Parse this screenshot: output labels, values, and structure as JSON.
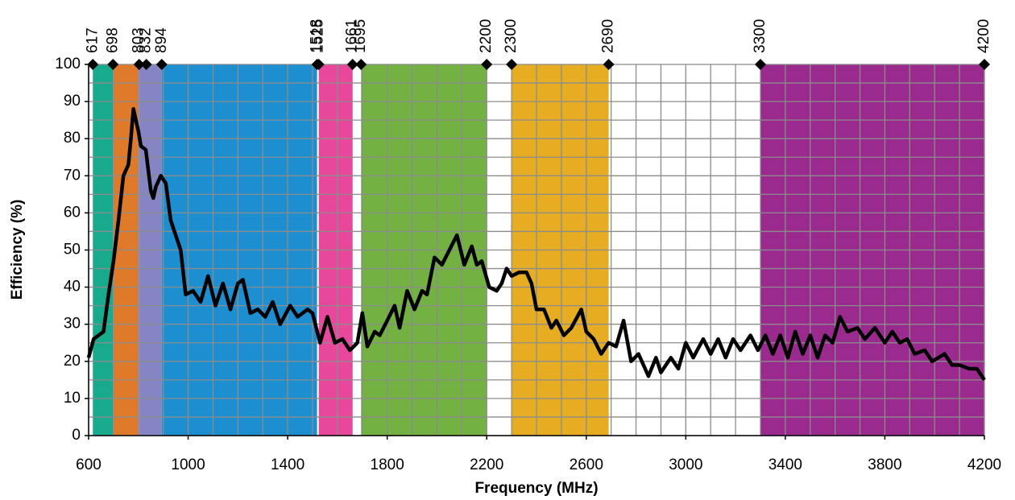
{
  "chart_data": {
    "type": "line",
    "xlabel": "Frequency (MHz)",
    "ylabel": "Efficiency (%)",
    "xlim": [
      600,
      4200
    ],
    "ylim": [
      0,
      100
    ],
    "xticks": [
      600,
      1000,
      1400,
      1800,
      2200,
      2600,
      3000,
      3400,
      3800,
      4200
    ],
    "yticks": [
      0,
      10,
      20,
      30,
      40,
      50,
      60,
      70,
      80,
      90,
      100
    ],
    "xgrid": [
      600,
      700,
      800,
      900,
      1000,
      1100,
      1200,
      1300,
      1400,
      1500,
      1600,
      1700,
      1800,
      1900,
      2000,
      2100,
      2200,
      2300,
      2400,
      2500,
      2600,
      2700,
      2800,
      2900,
      3000,
      3100,
      3200,
      3300,
      3400,
      3500,
      3600,
      3700,
      3800,
      3900,
      4000,
      4100,
      4200
    ],
    "ygrid": [
      0,
      5,
      10,
      15,
      20,
      25,
      30,
      35,
      40,
      45,
      50,
      55,
      60,
      65,
      70,
      75,
      80,
      85,
      90,
      95,
      100
    ],
    "grid": true,
    "bands": [
      {
        "start": 617,
        "end": 698,
        "color": "#19a98c"
      },
      {
        "start": 698,
        "end": 803,
        "color": "#df7a2b"
      },
      {
        "start": 803,
        "end": 894,
        "color": "#8585c4"
      },
      {
        "start": 894,
        "end": 1518,
        "color": "#1d8fd1"
      },
      {
        "start": 1525,
        "end": 1661,
        "color": "#e8489b"
      },
      {
        "start": 1695,
        "end": 2200,
        "color": "#73b143"
      },
      {
        "start": 2300,
        "end": 2690,
        "color": "#e6ad22"
      },
      {
        "start": 3300,
        "end": 4200,
        "color": "#9b2a8f"
      }
    ],
    "markers": [
      617,
      698,
      803,
      832,
      894,
      1518,
      1525,
      1661,
      1695,
      2200,
      2300,
      2690,
      3300,
      4200
    ],
    "x": [
      600,
      620,
      640,
      660,
      680,
      700,
      720,
      740,
      760,
      770,
      780,
      790,
      800,
      810,
      830,
      850,
      860,
      870,
      890,
      910,
      930,
      950,
      970,
      990,
      1020,
      1050,
      1080,
      1110,
      1140,
      1170,
      1200,
      1220,
      1250,
      1280,
      1310,
      1340,
      1370,
      1410,
      1440,
      1480,
      1500,
      1530,
      1560,
      1590,
      1620,
      1650,
      1680,
      1700,
      1720,
      1750,
      1770,
      1800,
      1830,
      1850,
      1880,
      1910,
      1940,
      1960,
      1990,
      2020,
      2050,
      2080,
      2110,
      2140,
      2160,
      2180,
      2210,
      2240,
      2260,
      2280,
      2300,
      2330,
      2360,
      2380,
      2400,
      2430,
      2460,
      2480,
      2510,
      2540,
      2580,
      2600,
      2630,
      2660,
      2690,
      2720,
      2750,
      2780,
      2810,
      2850,
      2880,
      2900,
      2940,
      2970,
      3000,
      3030,
      3070,
      3100,
      3130,
      3160,
      3190,
      3220,
      3260,
      3290,
      3320,
      3350,
      3380,
      3410,
      3440,
      3470,
      3500,
      3530,
      3560,
      3590,
      3620,
      3650,
      3690,
      3720,
      3760,
      3800,
      3830,
      3860,
      3890,
      3920,
      3960,
      3990,
      4040,
      4070,
      4100,
      4140,
      4170,
      4200
    ],
    "series": [
      {
        "color": "#000000",
        "values": [
          21,
          26,
          27,
          28,
          38,
          47,
          58,
          70,
          73,
          80,
          88,
          85,
          82,
          78,
          77,
          66,
          64,
          67,
          70,
          68,
          58,
          54,
          50,
          38,
          39,
          36,
          43,
          35,
          41,
          34,
          41,
          42,
          33,
          34,
          32,
          36,
          30,
          35,
          32,
          34,
          33,
          25,
          32,
          25,
          26,
          23,
          25,
          33,
          24,
          28,
          27,
          31,
          35,
          29,
          39,
          34,
          39,
          38,
          48,
          46,
          50,
          54,
          46,
          51,
          46,
          47,
          40,
          39,
          41,
          45,
          43,
          44,
          44,
          41,
          34,
          34,
          29,
          31,
          27,
          29,
          34,
          28,
          26,
          22,
          25,
          24,
          31,
          20,
          22,
          16,
          21,
          17,
          21,
          18,
          25,
          21,
          26,
          22,
          26,
          21,
          26,
          23,
          27,
          23,
          27,
          22,
          27,
          21,
          28,
          22,
          27,
          21,
          27,
          25,
          32,
          28,
          29,
          26,
          29,
          25,
          28,
          25,
          26,
          22,
          23,
          20,
          22,
          19,
          19,
          18,
          18,
          15
        ]
      }
    ]
  }
}
